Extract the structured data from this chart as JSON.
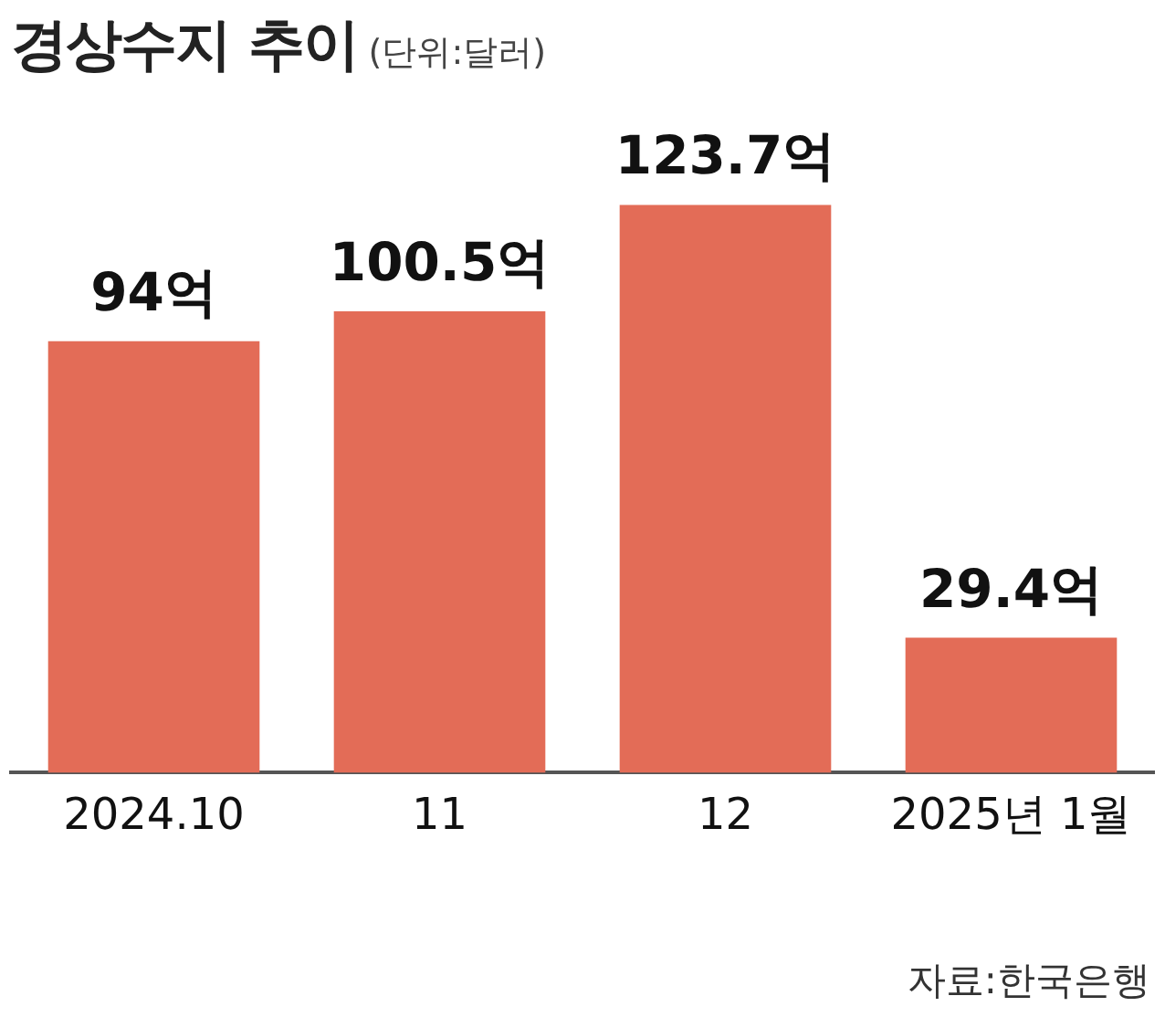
{
  "chart_data": {
    "type": "bar",
    "title": "경상수지 추이",
    "subtitle": "(단위:달러)",
    "categories": [
      "2024.10",
      "11",
      "12",
      "2025년 1월"
    ],
    "values": [
      94,
      100.5,
      123.7,
      29.4
    ],
    "value_labels": [
      "94억",
      "100.5억",
      "123.7억",
      "29.4억"
    ],
    "color": "#e36c57",
    "tick_labels": "x",
    "grid": false,
    "legend": false,
    "annotations": [
      "자료:한국은행"
    ]
  }
}
